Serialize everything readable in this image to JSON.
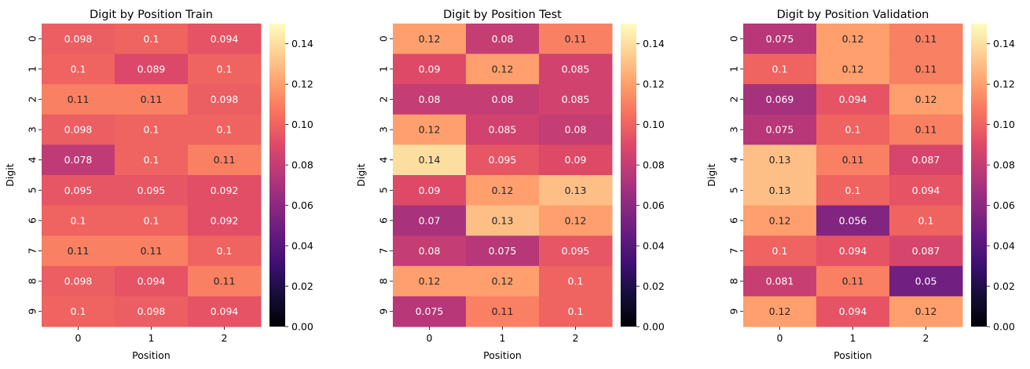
{
  "chart_data": [
    {
      "type": "heatmap",
      "title": "Digit by Position Train",
      "xlabel": "Position",
      "ylabel": "Digit",
      "x_categories": [
        "0",
        "1",
        "2"
      ],
      "y_categories": [
        "0",
        "1",
        "2",
        "3",
        "4",
        "5",
        "6",
        "7",
        "8",
        "9"
      ],
      "values": [
        [
          0.098,
          0.1,
          0.094
        ],
        [
          0.1,
          0.089,
          0.1
        ],
        [
          0.11,
          0.11,
          0.098
        ],
        [
          0.098,
          0.1,
          0.1
        ],
        [
          0.078,
          0.1,
          0.11
        ],
        [
          0.095,
          0.095,
          0.092
        ],
        [
          0.1,
          0.1,
          0.092
        ],
        [
          0.11,
          0.11,
          0.1
        ],
        [
          0.098,
          0.094,
          0.11
        ],
        [
          0.1,
          0.098,
          0.094
        ]
      ],
      "annotations": [
        [
          "0.098",
          "0.1",
          "0.094"
        ],
        [
          "0.1",
          "0.089",
          "0.1"
        ],
        [
          "0.11",
          "0.11",
          "0.098"
        ],
        [
          "0.098",
          "0.1",
          "0.1"
        ],
        [
          "0.078",
          "0.1",
          "0.11"
        ],
        [
          "0.095",
          "0.095",
          "0.092"
        ],
        [
          "0.1",
          "0.1",
          "0.092"
        ],
        [
          "0.11",
          "0.11",
          "0.1"
        ],
        [
          "0.098",
          "0.094",
          "0.11"
        ],
        [
          "0.1",
          "0.098",
          "0.094"
        ]
      ],
      "colorbar": {
        "range": [
          0,
          0.15
        ],
        "ticks": [
          "0.00",
          "0.02",
          "0.04",
          "0.06",
          "0.08",
          "0.10",
          "0.12",
          "0.14"
        ],
        "colormap": "magma"
      }
    },
    {
      "type": "heatmap",
      "title": "Digit by Position Test",
      "xlabel": "Position",
      "ylabel": "Digit",
      "x_categories": [
        "0",
        "1",
        "2"
      ],
      "y_categories": [
        "0",
        "1",
        "2",
        "3",
        "4",
        "5",
        "6",
        "7",
        "8",
        "9"
      ],
      "values": [
        [
          0.12,
          0.08,
          0.11
        ],
        [
          0.09,
          0.12,
          0.085
        ],
        [
          0.08,
          0.08,
          0.085
        ],
        [
          0.12,
          0.085,
          0.08
        ],
        [
          0.14,
          0.095,
          0.09
        ],
        [
          0.09,
          0.12,
          0.13
        ],
        [
          0.07,
          0.13,
          0.12
        ],
        [
          0.08,
          0.075,
          0.095
        ],
        [
          0.12,
          0.12,
          0.1
        ],
        [
          0.075,
          0.11,
          0.1
        ]
      ],
      "annotations": [
        [
          "0.12",
          "0.08",
          "0.11"
        ],
        [
          "0.09",
          "0.12",
          "0.085"
        ],
        [
          "0.08",
          "0.08",
          "0.085"
        ],
        [
          "0.12",
          "0.085",
          "0.08"
        ],
        [
          "0.14",
          "0.095",
          "0.09"
        ],
        [
          "0.09",
          "0.12",
          "0.13"
        ],
        [
          "0.07",
          "0.13",
          "0.12"
        ],
        [
          "0.08",
          "0.075",
          "0.095"
        ],
        [
          "0.12",
          "0.12",
          "0.1"
        ],
        [
          "0.075",
          "0.11",
          "0.1"
        ]
      ],
      "colorbar": {
        "range": [
          0,
          0.15
        ],
        "ticks": [
          "0.00",
          "0.02",
          "0.04",
          "0.06",
          "0.08",
          "0.10",
          "0.12",
          "0.14"
        ],
        "colormap": "magma"
      }
    },
    {
      "type": "heatmap",
      "title": "Digit by Position Validation",
      "xlabel": "Position",
      "ylabel": "Digit",
      "x_categories": [
        "0",
        "1",
        "2"
      ],
      "y_categories": [
        "0",
        "1",
        "2",
        "3",
        "4",
        "5",
        "6",
        "7",
        "8",
        "9"
      ],
      "values": [
        [
          0.075,
          0.12,
          0.11
        ],
        [
          0.1,
          0.12,
          0.11
        ],
        [
          0.069,
          0.094,
          0.12
        ],
        [
          0.075,
          0.1,
          0.11
        ],
        [
          0.13,
          0.11,
          0.087
        ],
        [
          0.13,
          0.1,
          0.094
        ],
        [
          0.12,
          0.056,
          0.1
        ],
        [
          0.1,
          0.094,
          0.087
        ],
        [
          0.081,
          0.11,
          0.05
        ],
        [
          0.12,
          0.094,
          0.12
        ]
      ],
      "annotations": [
        [
          "0.075",
          "0.12",
          "0.11"
        ],
        [
          "0.1",
          "0.12",
          "0.11"
        ],
        [
          "0.069",
          "0.094",
          "0.12"
        ],
        [
          "0.075",
          "0.1",
          "0.11"
        ],
        [
          "0.13",
          "0.11",
          "0.087"
        ],
        [
          "0.13",
          "0.1",
          "0.094"
        ],
        [
          "0.12",
          "0.056",
          "0.1"
        ],
        [
          "0.1",
          "0.094",
          "0.087"
        ],
        [
          "0.081",
          "0.11",
          "0.05"
        ],
        [
          "0.12",
          "0.094",
          "0.12"
        ]
      ],
      "colorbar": {
        "range": [
          0,
          0.15
        ],
        "ticks": [
          "0.00",
          "0.02",
          "0.04",
          "0.06",
          "0.08",
          "0.10",
          "0.12",
          "0.14"
        ],
        "colormap": "magma"
      }
    }
  ]
}
